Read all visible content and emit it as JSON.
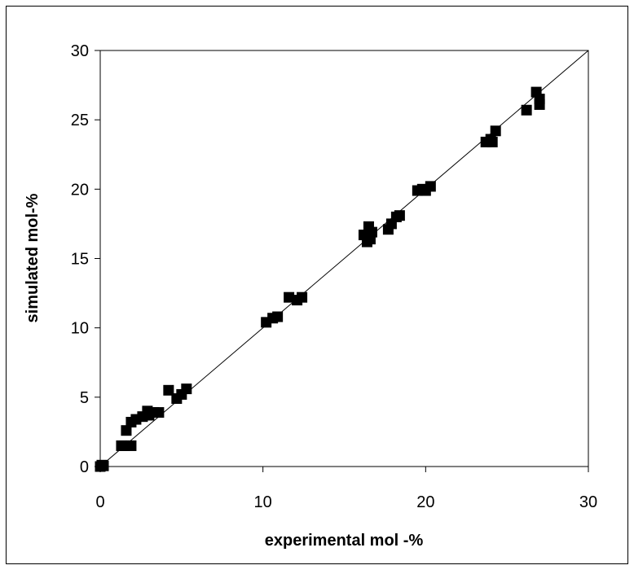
{
  "chart_data": {
    "type": "scatter",
    "title": "",
    "xlabel": "experimental mol -%",
    "ylabel": "simulated mol-%",
    "xlim": [
      0,
      30
    ],
    "ylim": [
      0,
      30
    ],
    "xticks": [
      "0",
      "10",
      "20",
      "30"
    ],
    "yticks": [
      "0",
      "5",
      "10",
      "15",
      "20",
      "25",
      "30"
    ],
    "grid": false,
    "legend": "none",
    "marker": "square",
    "marker_color": "#000000",
    "reference_line": {
      "type": "y=x",
      "from": [
        0,
        0
      ],
      "to": [
        30,
        30
      ]
    },
    "points": [
      {
        "x": 0.0,
        "y": 0.0
      },
      {
        "x": 0.1,
        "y": 0.1
      },
      {
        "x": 0.2,
        "y": 0.05
      },
      {
        "x": 1.3,
        "y": 1.5
      },
      {
        "x": 1.5,
        "y": 1.5
      },
      {
        "x": 1.9,
        "y": 1.5
      },
      {
        "x": 1.6,
        "y": 2.6
      },
      {
        "x": 1.9,
        "y": 3.2
      },
      {
        "x": 2.2,
        "y": 3.4
      },
      {
        "x": 2.6,
        "y": 3.6
      },
      {
        "x": 2.9,
        "y": 4.0
      },
      {
        "x": 3.0,
        "y": 3.7
      },
      {
        "x": 3.3,
        "y": 3.9
      },
      {
        "x": 3.6,
        "y": 3.9
      },
      {
        "x": 4.2,
        "y": 5.5
      },
      {
        "x": 4.7,
        "y": 4.9
      },
      {
        "x": 5.0,
        "y": 5.2
      },
      {
        "x": 5.3,
        "y": 5.6
      },
      {
        "x": 10.2,
        "y": 10.4
      },
      {
        "x": 10.6,
        "y": 10.7
      },
      {
        "x": 10.9,
        "y": 10.8
      },
      {
        "x": 11.6,
        "y": 12.2
      },
      {
        "x": 12.1,
        "y": 12.0
      },
      {
        "x": 12.4,
        "y": 12.2
      },
      {
        "x": 16.2,
        "y": 16.7
      },
      {
        "x": 16.4,
        "y": 16.2
      },
      {
        "x": 16.5,
        "y": 17.3
      },
      {
        "x": 16.6,
        "y": 16.4
      },
      {
        "x": 16.7,
        "y": 16.9
      },
      {
        "x": 17.7,
        "y": 17.1
      },
      {
        "x": 17.9,
        "y": 17.5
      },
      {
        "x": 18.2,
        "y": 18.0
      },
      {
        "x": 18.4,
        "y": 18.1
      },
      {
        "x": 19.5,
        "y": 19.9
      },
      {
        "x": 19.8,
        "y": 20.0
      },
      {
        "x": 20.0,
        "y": 19.9
      },
      {
        "x": 20.3,
        "y": 20.2
      },
      {
        "x": 23.7,
        "y": 23.4
      },
      {
        "x": 24.0,
        "y": 23.6
      },
      {
        "x": 24.1,
        "y": 23.4
      },
      {
        "x": 24.3,
        "y": 24.2
      },
      {
        "x": 26.2,
        "y": 25.7
      },
      {
        "x": 26.8,
        "y": 27.0
      },
      {
        "x": 27.0,
        "y": 26.1
      },
      {
        "x": 27.0,
        "y": 26.5
      }
    ]
  }
}
